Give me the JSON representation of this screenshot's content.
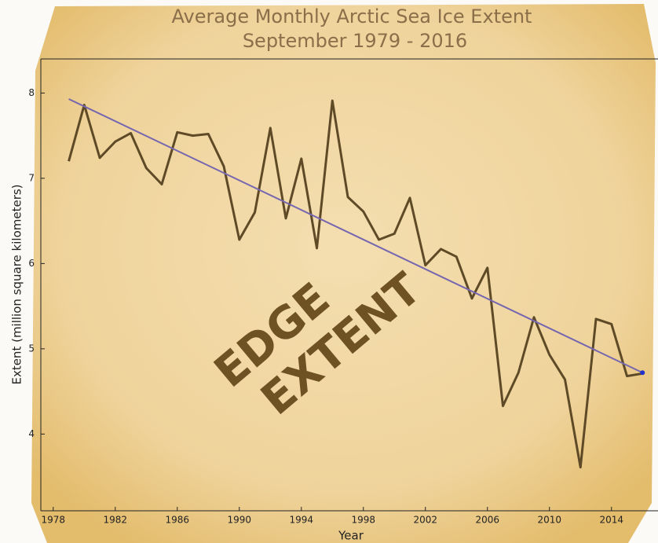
{
  "chart_data": {
    "type": "line",
    "title": "Average Monthly Arctic Sea Ice Extent",
    "subtitle": "September 1979 - 2016",
    "xlabel": "Year",
    "ylabel": "Extent (million square kilometers)",
    "annotations": [
      "EDGE",
      "EXTENT"
    ],
    "x": [
      1979,
      1980,
      1981,
      1982,
      1983,
      1984,
      1985,
      1986,
      1987,
      1988,
      1989,
      1990,
      1991,
      1992,
      1993,
      1994,
      1995,
      1996,
      1997,
      1998,
      1999,
      2000,
      2001,
      2002,
      2003,
      2004,
      2005,
      2006,
      2007,
      2008,
      2009,
      2010,
      2011,
      2012,
      2013,
      2014,
      2015,
      2016
    ],
    "values": [
      7.2,
      7.86,
      7.24,
      7.43,
      7.53,
      7.12,
      6.93,
      7.54,
      7.5,
      7.52,
      7.14,
      6.28,
      6.6,
      7.59,
      6.53,
      7.23,
      6.18,
      7.91,
      6.78,
      6.61,
      6.28,
      6.35,
      6.77,
      5.98,
      6.17,
      6.08,
      5.59,
      5.95,
      4.33,
      4.72,
      5.37,
      4.93,
      4.64,
      3.61,
      5.35,
      5.29,
      4.68,
      4.71
    ],
    "color": "#5e4a26",
    "trend": {
      "x": [
        1979,
        2016
      ],
      "values": [
        7.93,
        4.72
      ],
      "color": "#7566b0"
    },
    "xlim": [
      1977.2,
      2017
    ],
    "ylim": [
      3.1,
      8.4
    ],
    "xticks": [
      1978,
      1982,
      1986,
      1990,
      1994,
      1998,
      2002,
      2006,
      2010,
      2014
    ],
    "yticks": [
      4,
      5,
      6,
      7,
      8
    ]
  }
}
